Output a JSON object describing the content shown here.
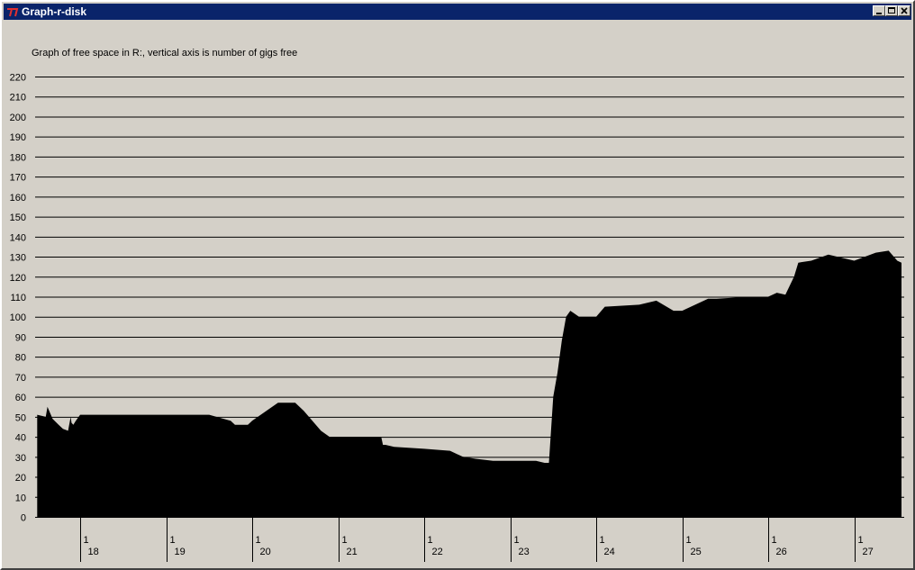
{
  "window": {
    "title": "Graph-r-disk",
    "icon": "app-icon",
    "buttons": [
      "minimize-icon",
      "maximize-icon",
      "close-icon"
    ]
  },
  "caption": "Graph of free space in R:, vertical axis is number of gigs free",
  "colors": {
    "fill": "#000000",
    "background": "#d4d0c8",
    "titlebar": "#0a246a",
    "gridline": "#000000"
  },
  "chart_data": {
    "type": "area",
    "title": "Graph of free space in R:, vertical axis is number of gigs free",
    "xlabel": "",
    "ylabel": "",
    "ylim": [
      0,
      220
    ],
    "yticks": [
      0,
      10,
      20,
      30,
      40,
      50,
      60,
      70,
      80,
      90,
      100,
      110,
      120,
      130,
      140,
      150,
      160,
      170,
      180,
      190,
      200,
      210,
      220
    ],
    "grid": true,
    "xlim": [
      "17 12:00",
      "27 18:00"
    ],
    "x_ticks": [
      {
        "month": "1",
        "day": "18"
      },
      {
        "month": "1",
        "day": "19"
      },
      {
        "month": "1",
        "day": "20"
      },
      {
        "month": "1",
        "day": "21"
      },
      {
        "month": "1",
        "day": "22"
      },
      {
        "month": "1",
        "day": "23"
      },
      {
        "month": "1",
        "day": "24"
      },
      {
        "month": "1",
        "day": "25"
      },
      {
        "month": "1",
        "day": "26"
      },
      {
        "month": "1",
        "day": "27"
      }
    ],
    "x": [
      17.5,
      17.6,
      17.62,
      17.68,
      17.75,
      17.8,
      17.86,
      17.89,
      17.9,
      17.92,
      17.95,
      18,
      18.5,
      19,
      19.25,
      19.5,
      19.75,
      19.8,
      19.95,
      20,
      20.3,
      20.4,
      20.5,
      20.6,
      20.7,
      20.8,
      20.9,
      21,
      21.2,
      21.4,
      21.5,
      21.52,
      21.55,
      21.65,
      22,
      22.3,
      22.45,
      22.6,
      22.8,
      23,
      23.3,
      23.4,
      23.45,
      23.5,
      23.55,
      23.6,
      23.65,
      23.7,
      23.8,
      24,
      24.1,
      24.5,
      24.7,
      24.9,
      25,
      25.3,
      25.4,
      25.8,
      26,
      26.1,
      26.2,
      26.3,
      26.35,
      26.5,
      26.7,
      26.9,
      27,
      27.25,
      27.4,
      27.5,
      27.55
    ],
    "values": [
      51,
      50,
      55,
      49,
      46,
      44,
      43,
      50,
      47,
      46,
      48,
      51,
      51,
      51,
      51,
      51,
      48,
      46,
      46,
      48,
      57,
      57,
      57,
      53,
      48,
      43,
      40,
      40,
      40,
      40,
      40,
      36,
      36,
      35,
      34,
      33,
      30,
      29,
      28,
      28,
      28,
      27,
      27,
      60,
      72,
      88,
      100,
      103,
      100,
      100,
      105,
      106,
      108,
      103,
      103,
      109,
      109,
      110,
      110,
      112,
      111,
      120,
      127,
      128,
      131,
      129,
      128,
      132,
      133,
      128,
      127
    ]
  }
}
